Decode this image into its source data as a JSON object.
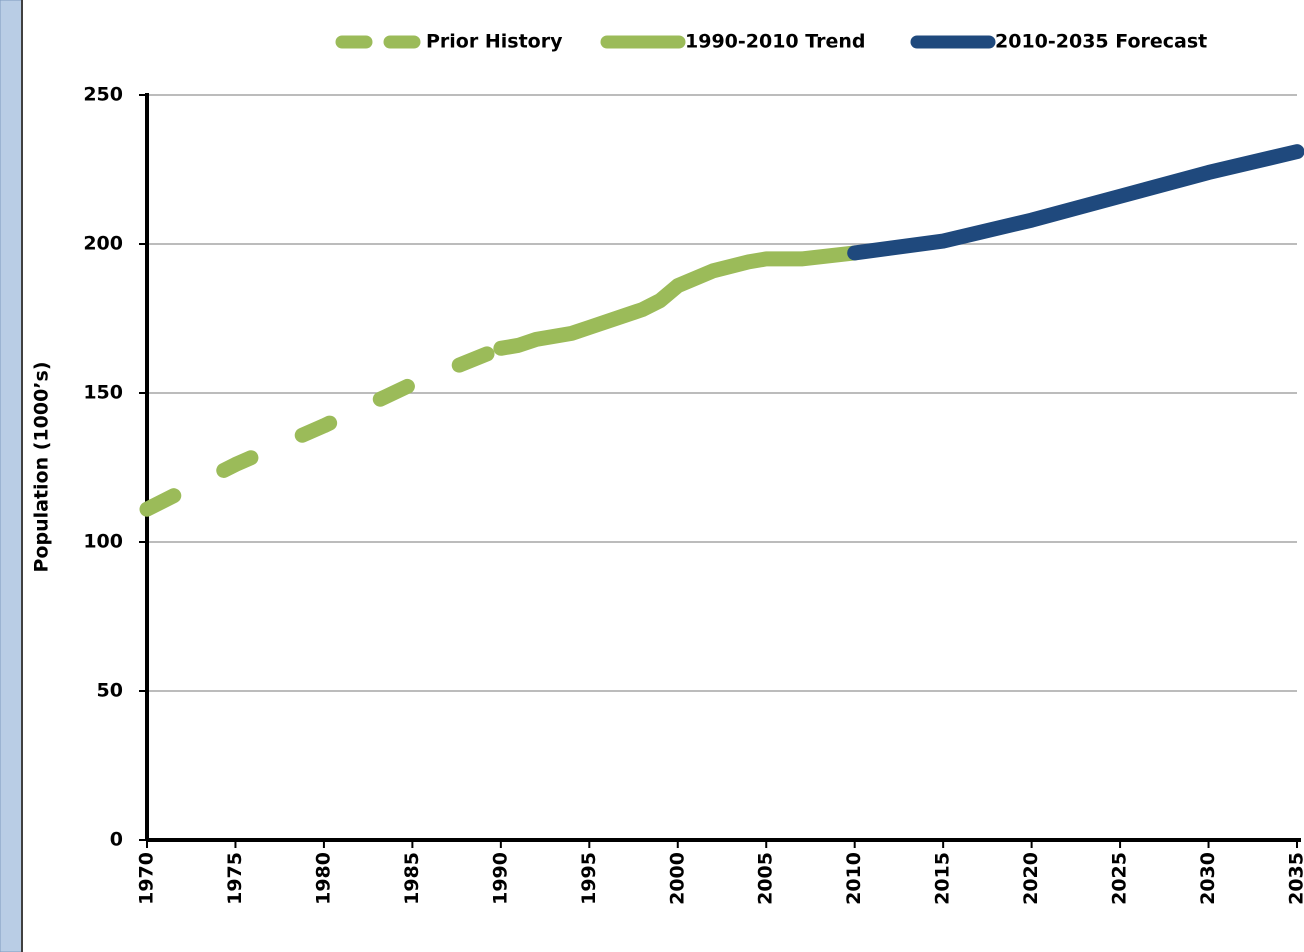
{
  "chart_data": {
    "type": "line",
    "y_label": "Population (1000’s)",
    "xlim": [
      1970,
      2035
    ],
    "xticks": [
      1970,
      1975,
      1980,
      1985,
      1990,
      1995,
      2000,
      2005,
      2010,
      2015,
      2020,
      2025,
      2030,
      2035
    ],
    "ylim": [
      0,
      250
    ],
    "yticks": [
      0,
      50,
      100,
      150,
      200,
      250
    ],
    "grid": true,
    "legend": "top",
    "series": [
      {
        "name": "Prior History",
        "color": "#9bbb59",
        "dashed": true,
        "x": [
          1970,
          1975,
          1980,
          1985,
          1990
        ],
        "values": [
          111,
          126,
          139,
          153,
          165
        ]
      },
      {
        "name": "1990-2010 Trend",
        "color": "#9bbb59",
        "dashed": false,
        "x": [
          1990,
          1991,
          1992,
          1994,
          1995,
          1997,
          1998,
          1999,
          2000,
          2002,
          2004,
          2005,
          2007,
          2010
        ],
        "values": [
          165,
          166,
          168,
          170,
          172,
          176,
          178,
          181,
          186,
          191,
          194,
          195,
          195,
          197
        ]
      },
      {
        "name": "2010-2035 Forecast",
        "color": "#1f497d",
        "dashed": false,
        "x": [
          2010,
          2015,
          2020,
          2025,
          2030,
          2035
        ],
        "values": [
          197,
          201,
          208,
          216,
          224,
          231
        ]
      }
    ]
  }
}
